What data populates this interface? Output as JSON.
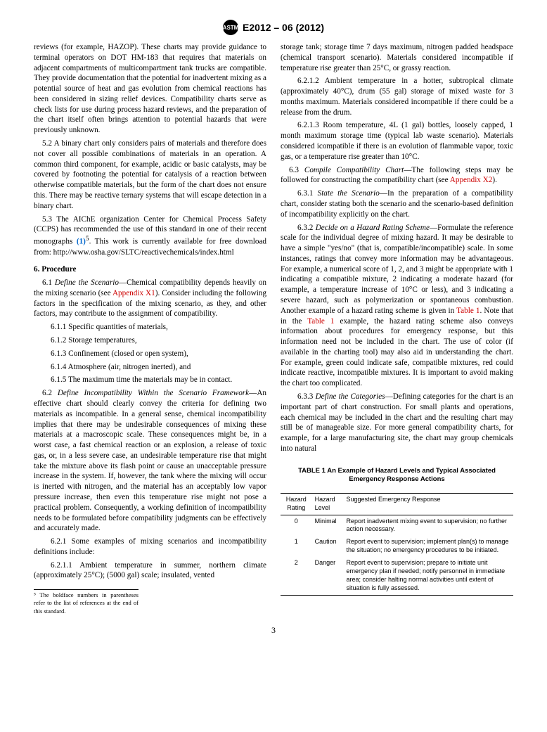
{
  "header": {
    "doc_id": "E2012 – 06 (2012)",
    "logo_text": "ASTM"
  },
  "col_left": {
    "p1": "reviews (for example, HAZOP). These charts may provide guidance to terminal operators on DOT HM-183 that requires that materials on adjacent compartments of multicompartment tank trucks are compatible. They provide documentation that the potential for inadvertent mixing as a potential source of heat and gas evolution from chemical reactions has been considered in sizing relief devices. Compatibility charts serve as check lists for use during process hazard reviews, and the preparation of the chart itself often brings attention to potential hazards that were previously unknown.",
    "p2": "5.2 A binary chart only considers pairs of materials and therefore does not cover all possible combinations of materials in an operation. A common third component, for example, acidic or basic catalysts, may be covered by footnoting the potential for catalysis of a reaction between otherwise compatible materials, but the form of the chart does not ensure this. There may be reactive ternary systems that will escape detection in a binary chart.",
    "p3_a": "5.3 The AIChE organization Center for Chemical Process Safety (CCPS) has recommended the use of this standard in one of their recent monographs ",
    "p3_ref": "(1)",
    "p3_sup": "5",
    "p3_b": ". This work is currently available for free download from: http://www.osha.gov/SLTC/reactivechemicals/index.html",
    "h6": "6. Procedure",
    "p61_a": "6.1 ",
    "p61_term": "Define the Scenario",
    "p61_b": "—Chemical compatibility depends heavily on the mixing scenario (see ",
    "p61_link": "Appendix X1",
    "p61_c": "). Consider including the following factors in the specification of the mixing scenario, as they, and other factors, may contribute to the assignment of compatibility.",
    "p611": "6.1.1 Specific quantities of materials,",
    "p612": "6.1.2 Storage temperatures,",
    "p613": "6.1.3 Confinement (closed or open system),",
    "p614": "6.1.4 Atmosphere (air, nitrogen inerted), and",
    "p615": "6.1.5 The maximum time the materials may be in contact.",
    "p62_a": "6.2 ",
    "p62_term": "Define Incompatibility Within the Scenario Framework",
    "p62_b": "—An effective chart should clearly convey the criteria for defining two materials as incompatible. In a general sense, chemical incompatibility implies that there may be undesirable consequences of mixing these materials at a macroscopic scale. These consequences might be, in a worst case, a fast chemical reaction or an explosion, a release of toxic gas, or, in a less severe case, an undesirable temperature rise that might take the mixture above its flash point or cause an unacceptable pressure increase in the system. If, however, the tank where the mixing will occur is inerted with nitrogen, and the material has an acceptably low vapor pressure increase, then even this temperature rise might not pose a practical problem. Consequently, a working definition of incompatibility needs to be formulated before compatibility judgments can be effectively and accurately made.",
    "p621": "6.2.1 Some examples of mixing scenarios and incompatibility definitions include:",
    "p6211": "6.2.1.1 Ambient temperature in summer, northern climate (approximately 25°C); (5000 gal) scale; insulated, vented",
    "footnote": "⁵ The boldface numbers in parentheses refer to the list of references at the end of this standard."
  },
  "col_right": {
    "p_cont": "storage tank; storage time 7 days maximum, nitrogen padded headspace (chemical transport scenario). Materials considered incompatible if temperature rise greater than 25°C, or grassy reaction.",
    "p6212": "6.2.1.2 Ambient temperature in a hotter, subtropical climate (approximately 40°C), drum (55 gal) storage of mixed waste for 3 months maximum. Materials considered incompatible if there could be a release from the drum.",
    "p6213": "6.2.1.3 Room temperature, 4L (1 gal) bottles, loosely capped, 1 month maximum storage time (typical lab waste scenario). Materials considered icompatible if there is an evolution of flammable vapor, toxic gas, or a temperature rise greater than 10°C.",
    "p63_a": "6.3 ",
    "p63_term": "Compile Compatibility Chart",
    "p63_b": "—The following steps may be followed for constructing the compatibility chart (see ",
    "p63_link": "Appendix X2",
    "p63_c": ").",
    "p631_a": "6.3.1 ",
    "p631_term": "State the Scenario",
    "p631_b": "—In the preparation of a compatibility chart, consider stating both the scenario and the scenario-based definition of incompatibility explicitly on the chart.",
    "p632_a": "6.3.2 ",
    "p632_term": "Decide on a Hazard Rating Scheme",
    "p632_b": "—Formulate the reference scale for the individual degree of mixing hazard. It may be desirable to have a simple \"yes/no\" (that is, compatible/incompatible) scale. In some instances, ratings that convey more information may be advantageous. For example, a numerical score of 1, 2, and 3 might be appropriate with 1 indicating a compatible mixture, 2 indicating a moderate hazard (for example, a temperature increase of 10°C or less), and 3 indicating a severe hazard, such as polymerization or spontaneous combustion. Another example of a hazard rating scheme is given in ",
    "p632_link1": "Table 1",
    "p632_c": ". Note that in the ",
    "p632_link2": "Table 1",
    "p632_d": " example, the hazard rating scheme also conveys information about procedures for emergency response, but this information need not be included in the chart. The use of color (if available in the charting tool) may also aid in understanding the chart. For example, green could indicate safe, compatible mixtures, red could indicate reactive, incompatible mixtures. It is important to avoid making the chart too complicated.",
    "p633_a": "6.3.3 ",
    "p633_term": "Define the Categories",
    "p633_b": "—Defining categories for the chart is an important part of chart construction. For small plants and operations, each chemical may be included in the chart and the resulting chart may still be of manageable size. For more general compatibility charts, for example, for a large manufacturing site, the chart may group chemicals into natural"
  },
  "table": {
    "title": "TABLE 1 An Example of Hazard Levels and Typical Associated Emergency Response Actions",
    "headers": [
      "Hazard Rating",
      "Hazard Level",
      "Suggested Emergency Response"
    ],
    "rows": [
      [
        "0",
        "Minimal",
        "Report inadvertent mixing event to supervision; no further action necessary."
      ],
      [
        "1",
        "Caution",
        "Report event to supervision; implement plan(s) to manage the situation; no emergency procedures to be initiated."
      ],
      [
        "2",
        "Danger",
        "Report event to supervision; prepare to initiate unit emergency plan if needed; notify personnel in immediate area; consider halting normal activities until extent of situation is fully assessed."
      ]
    ]
  },
  "page_num": "3"
}
